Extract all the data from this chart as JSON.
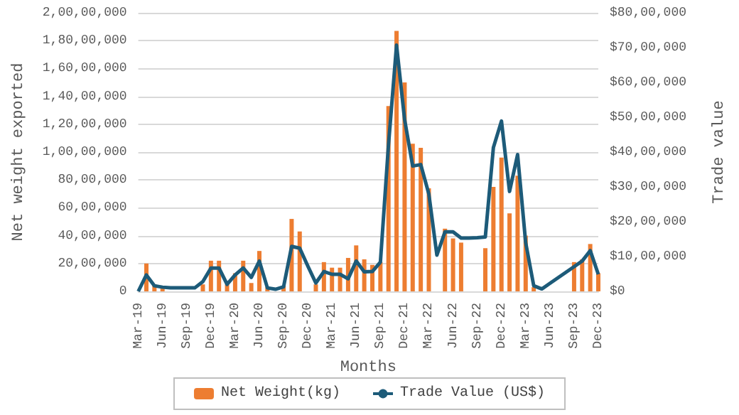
{
  "chart_data": {
    "type": "bar",
    "xlabel": "Months",
    "ylabel": "Net weight exported",
    "y2label": "Trade value",
    "categories": [
      "Mar-19",
      null,
      null,
      "Jun-19",
      null,
      null,
      "Sep-19",
      null,
      null,
      "Dec-19",
      null,
      null,
      "Mar-20",
      null,
      null,
      "Jun-20",
      null,
      null,
      "Sep-20",
      null,
      null,
      "Dec-20",
      null,
      null,
      "Mar-21",
      null,
      null,
      "Jun-21",
      null,
      null,
      "Sep-21",
      null,
      null,
      "Dec-21",
      null,
      null,
      "Mar-22",
      null,
      null,
      "Jun-22",
      null,
      null,
      "Sep-22",
      null,
      null,
      "Dec-22",
      null,
      null,
      "Mar-23",
      null,
      null,
      "Jun-23",
      null,
      null,
      "Sep-23",
      null,
      null,
      "Dec-23"
    ],
    "series": [
      {
        "name": "Net Weight(kg)",
        "color": "#ed7d31",
        "values": [
          null,
          2000000,
          500000,
          200000,
          null,
          null,
          null,
          null,
          500000,
          2200000,
          2200000,
          500000,
          1300000,
          2200000,
          600000,
          2900000,
          300000,
          null,
          400000,
          5200000,
          4300000,
          null,
          500000,
          2100000,
          1700000,
          1700000,
          2400000,
          3300000,
          2300000,
          1900000,
          2100000,
          13300000,
          18700000,
          15000000,
          10600000,
          10300000,
          7400000,
          null,
          4500000,
          3800000,
          3500000,
          null,
          null,
          3100000,
          7500000,
          9600000,
          5600000,
          8300000,
          4000000,
          300000,
          null,
          null,
          null,
          null,
          2100000,
          2300000,
          3400000,
          1300000
        ]
      },
      {
        "name": "Trade Value (US$)",
        "type": "line",
        "axis": "y2",
        "color": "#1d5b79",
        "values": [
          0,
          470000,
          160000,
          120000,
          100000,
          100000,
          100000,
          100000,
          280000,
          670000,
          670000,
          200000,
          470000,
          670000,
          400000,
          870000,
          100000,
          60000,
          130000,
          1290000,
          1240000,
          730000,
          240000,
          570000,
          490000,
          490000,
          360000,
          870000,
          560000,
          570000,
          840000,
          4200000,
          7070000,
          4930000,
          3600000,
          3640000,
          2800000,
          1040000,
          1710000,
          1710000,
          1530000,
          1530000,
          1540000,
          1560000,
          4130000,
          4890000,
          2870000,
          3930000,
          1400000,
          160000,
          70000,
          230000,
          null,
          null,
          710000,
          870000,
          1170000,
          490000
        ]
      }
    ],
    "ylim": [
      0,
      20000000
    ],
    "yticks": [
      {
        "value": 0,
        "label": "0"
      },
      {
        "value": 2000000,
        "label": "20,00,000"
      },
      {
        "value": 4000000,
        "label": "40,00,000"
      },
      {
        "value": 6000000,
        "label": "60,00,000"
      },
      {
        "value": 8000000,
        "label": "80,00,000"
      },
      {
        "value": 10000000,
        "label": "1,00,00,000"
      },
      {
        "value": 12000000,
        "label": "1,20,00,000"
      },
      {
        "value": 14000000,
        "label": "1,40,00,000"
      },
      {
        "value": 16000000,
        "label": "1,60,00,000"
      },
      {
        "value": 18000000,
        "label": "1,80,00,000"
      },
      {
        "value": 20000000,
        "label": "2,00,00,000"
      }
    ],
    "y2lim": [
      0,
      8000000
    ],
    "y2ticks": [
      {
        "value": 0,
        "label": "$0"
      },
      {
        "value": 1000000,
        "label": "$10,00,000"
      },
      {
        "value": 2000000,
        "label": "$20,00,000"
      },
      {
        "value": 3000000,
        "label": "$30,00,000"
      },
      {
        "value": 4000000,
        "label": "$40,00,000"
      },
      {
        "value": 5000000,
        "label": "$50,00,000"
      },
      {
        "value": 6000000,
        "label": "$60,00,000"
      },
      {
        "value": 7000000,
        "label": "$70,00,000"
      },
      {
        "value": 8000000,
        "label": "$80,00,000"
      }
    ],
    "grid": "y",
    "legend": "bottom",
    "marker": "none",
    "line_style": "solid"
  }
}
